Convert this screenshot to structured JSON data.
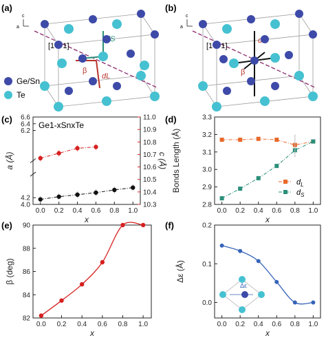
{
  "panels": {
    "a": {
      "letter": "(a)",
      "direction_label": "[1 1 1]",
      "bond_short_label": "dS",
      "bond_long_label": "dL",
      "angle_label": "β",
      "legend": [
        {
          "label": "Ge/Sn",
          "color": "#3d4aa8"
        },
        {
          "label": "Te",
          "color": "#45c1d1"
        }
      ],
      "axis_c": "c",
      "axis_a": "a"
    },
    "b": {
      "letter": "(b)",
      "direction_label": "[1 1 1]",
      "bond_label": "d'",
      "angle_label": "β",
      "axis_c": "c",
      "axis_a": "a"
    }
  },
  "chart_data": [
    {
      "panel": "c",
      "letter": "(c)",
      "type": "scatter",
      "title": "Ge1-xSnxTe",
      "xlabel": "x",
      "xlim": [
        -0.08,
        1.08
      ],
      "xticks": [
        0.0,
        0.2,
        0.4,
        0.6,
        0.8,
        1.0
      ],
      "left_axis": {
        "label": "a (Å)",
        "ylim": [
          4.0,
          6.6
        ],
        "ticks": [
          4.0,
          4.2,
          6.2,
          6.4,
          6.6
        ],
        "color": "#222222"
      },
      "right_axis": {
        "label": "c (Å)",
        "ylim": [
          10.3,
          11.0
        ],
        "ticks": [
          10.3,
          10.4,
          10.5,
          10.6,
          10.7,
          10.8,
          10.9,
          11.0
        ],
        "color": "#d62020"
      },
      "series": [
        {
          "axis": "left",
          "color": "#111111",
          "style": "dashed-dot",
          "x": [
            0.0,
            0.2,
            0.4,
            0.6,
            0.8,
            1.0
          ],
          "y": [
            4.15,
            4.23,
            4.29,
            4.35,
            4.43,
            4.5
          ]
        },
        {
          "axis": "right",
          "color": "#d62020",
          "style": "dashed-dot",
          "x": [
            0.0,
            0.2,
            0.4,
            0.6
          ],
          "y": [
            10.67,
            10.71,
            10.75,
            10.76
          ]
        }
      ]
    },
    {
      "panel": "d",
      "letter": "(d)",
      "type": "line",
      "xlabel": "x",
      "ylabel": "Bonds Length (Å)",
      "xlim": [
        -0.08,
        1.08
      ],
      "ylim": [
        2.8,
        3.3
      ],
      "xticks": [
        0.0,
        0.2,
        0.4,
        0.6,
        0.8,
        1.0
      ],
      "yticks": [
        2.8,
        2.9,
        3.0,
        3.1,
        3.2,
        3.3
      ],
      "legend_position": "bottom-right",
      "series": [
        {
          "name": "dL",
          "color": "#e8682a",
          "marker": "square",
          "x": [
            0.0,
            0.2,
            0.4,
            0.6,
            0.8,
            1.0
          ],
          "y": [
            3.17,
            3.17,
            3.175,
            3.17,
            3.14,
            3.16
          ]
        },
        {
          "name": "dS",
          "color": "#2a8f7a",
          "marker": "square",
          "x": [
            0.0,
            0.2,
            0.4,
            0.6,
            0.8,
            1.0
          ],
          "y": [
            2.835,
            2.89,
            2.95,
            3.02,
            3.11,
            3.16
          ]
        }
      ]
    },
    {
      "panel": "e",
      "letter": "(e)",
      "type": "line",
      "xlabel": "x",
      "ylabel": "β (deg)",
      "xlim": [
        -0.08,
        1.08
      ],
      "ylim": [
        82,
        90
      ],
      "xticks": [
        0.0,
        0.2,
        0.4,
        0.6,
        0.8,
        1.0
      ],
      "yticks": [
        82,
        84,
        86,
        88,
        90
      ],
      "series": [
        {
          "color": "#d62020",
          "marker": "circle",
          "x": [
            0.0,
            0.2,
            0.4,
            0.6,
            0.8,
            1.0
          ],
          "y": [
            82.2,
            83.5,
            84.9,
            86.8,
            90.0,
            90.0
          ]
        }
      ]
    },
    {
      "panel": "f",
      "letter": "(f)",
      "type": "line",
      "xlabel": "x",
      "ylabel": "Δε (Å)",
      "xlim": [
        -0.08,
        1.08
      ],
      "ylim": [
        -0.04,
        0.2
      ],
      "xticks": [
        0.0,
        0.2,
        0.4,
        0.6,
        0.8,
        1.0
      ],
      "yticks": [
        0.0,
        0.1,
        0.2
      ],
      "inset_label": "Δε",
      "series": [
        {
          "color": "#3563b8",
          "marker": "circle",
          "x": [
            0.0,
            0.2,
            0.4,
            0.6,
            0.8,
            1.0
          ],
          "y": [
            0.147,
            0.133,
            0.107,
            0.053,
            0.0,
            0.0
          ]
        }
      ]
    }
  ]
}
